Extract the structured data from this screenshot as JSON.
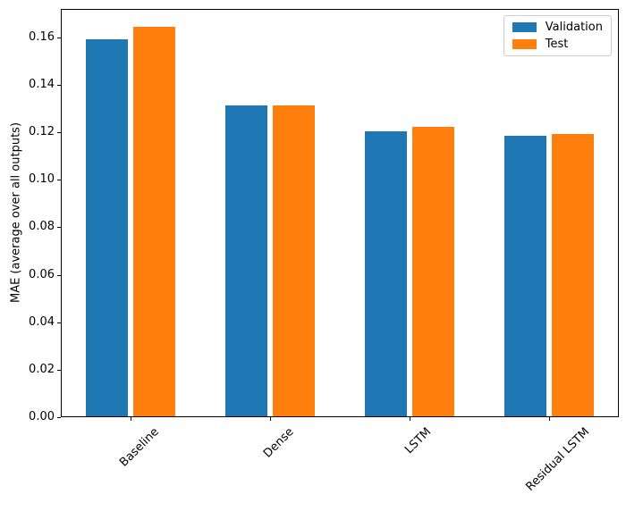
{
  "chart_data": {
    "type": "bar",
    "title": "",
    "categories": [
      "Baseline",
      "Dense",
      "LSTM",
      "Residual LSTM"
    ],
    "series": [
      {
        "name": "Validation",
        "color": "#1f77b4",
        "values": [
          0.159,
          0.131,
          0.12,
          0.118
        ]
      },
      {
        "name": "Test",
        "color": "#ff7f0e",
        "values": [
          0.164,
          0.131,
          0.122,
          0.119
        ]
      }
    ],
    "xlabel": "",
    "ylabel": "MAE (average over all outputs)",
    "ylim": [
      0,
      0.172
    ],
    "yticks": [
      0.0,
      0.02,
      0.04,
      0.06,
      0.08,
      0.1,
      0.12,
      0.14,
      0.16
    ],
    "xlim": [
      -0.5,
      3.5
    ],
    "bar_width": 0.3,
    "bar_offset": 0.17,
    "xtick_rotation_deg": 45,
    "grid": false,
    "legend": {
      "position": "upper right",
      "entries": [
        "Validation",
        "Test"
      ]
    },
    "axis_color": "#000000",
    "legend_border_color": "#cccccc",
    "background": "#ffffff"
  }
}
